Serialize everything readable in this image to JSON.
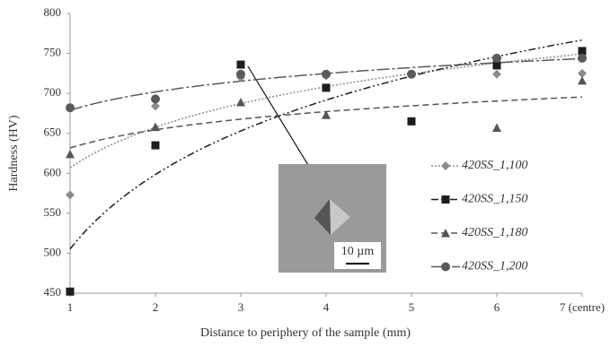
{
  "chart_data": {
    "type": "scatter",
    "x_label": "Distance to periphery of the sample (mm)",
    "y_label": "Hardness (HV)",
    "annotations": [
      "10 µm"
    ],
    "x": [
      1,
      2,
      3,
      4,
      5,
      6,
      7
    ],
    "xlim": [
      1,
      7
    ],
    "xticks": [
      1,
      2,
      3,
      4,
      5,
      6,
      {
        "value": 7,
        "label": "7 (centre)"
      }
    ],
    "ylim": [
      450,
      800
    ],
    "yticks": [
      450,
      500,
      550,
      600,
      650,
      700,
      750,
      800
    ],
    "grid": false,
    "trendline": "logarithmic",
    "legend": "right",
    "series": [
      {
        "name": "420SS_1,100",
        "color": "#8c8c8c",
        "marker": "diamond",
        "dash": "2 2",
        "values": [
          573,
          684,
          720,
          722,
          724,
          724,
          725
        ]
      },
      {
        "name": "420SS_1,150",
        "color": "#1e1e1e",
        "marker": "square",
        "dash": "8 3 2 3 2 3",
        "values": [
          452,
          635,
          736,
          707,
          665,
          735,
          753
        ]
      },
      {
        "name": "420SS_1,180",
        "color": "#555555",
        "marker": "triangle",
        "dash": "7 4",
        "values": [
          624,
          658,
          689,
          673,
          null,
          657,
          716
        ]
      },
      {
        "name": "420SS_1,200",
        "color": "#5a5a5a",
        "marker": "circle",
        "dash": "14 3 3 3",
        "values": [
          682,
          693,
          724,
          724,
          724,
          744,
          744
        ]
      }
    ]
  }
}
